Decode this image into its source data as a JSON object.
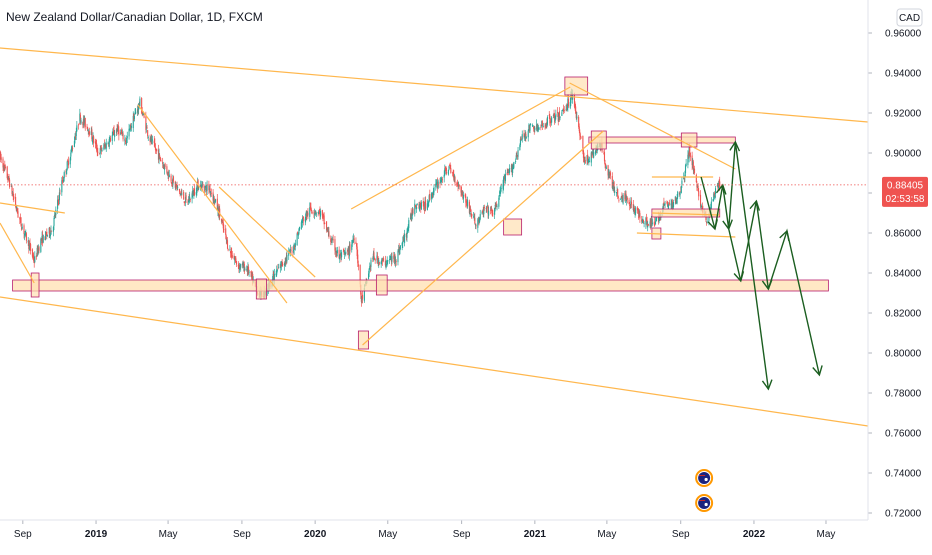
{
  "chart_data": {
    "type": "candlestick",
    "title": "New Zealand Dollar/Canadian Dollar, 1D, FXCM",
    "currency_button": "CAD",
    "y_axis": {
      "ylim": [
        0.7165,
        0.9765
      ],
      "tick_labels": [
        "0.72000",
        "0.74000",
        "0.76000",
        "0.78000",
        "0.80000",
        "0.82000",
        "0.84000",
        "0.86000",
        "0.88000",
        "0.90000",
        "0.92000",
        "0.94000",
        "0.96000"
      ],
      "tick_values": [
        0.72,
        0.74,
        0.76,
        0.78,
        0.8,
        0.82,
        0.84,
        0.86,
        0.88,
        0.9,
        0.92,
        0.94,
        0.96
      ]
    },
    "x_axis": {
      "range": [
        "2018-07-25",
        "2022-07-10"
      ],
      "ticks": [
        {
          "label": "Sep",
          "date": "2018-09-01",
          "bold": false
        },
        {
          "label": "2019",
          "date": "2019-01-01",
          "bold": true
        },
        {
          "label": "May",
          "date": "2019-05-01",
          "bold": false
        },
        {
          "label": "Sep",
          "date": "2019-09-01",
          "bold": false
        },
        {
          "label": "2020",
          "date": "2020-01-01",
          "bold": true
        },
        {
          "label": "May",
          "date": "2020-05-01",
          "bold": false
        },
        {
          "label": "Sep",
          "date": "2020-09-01",
          "bold": false
        },
        {
          "label": "2021",
          "date": "2021-01-01",
          "bold": true
        },
        {
          "label": "May",
          "date": "2021-05-01",
          "bold": false
        },
        {
          "label": "Sep",
          "date": "2021-09-01",
          "bold": false
        },
        {
          "label": "2022",
          "date": "2022-01-01",
          "bold": true
        },
        {
          "label": "May",
          "date": "2022-05-01",
          "bold": false
        }
      ]
    },
    "last_price": {
      "value": 0.88405,
      "label": "0.88405",
      "countdown": "02:53:58"
    },
    "colors": {
      "up": "#26a69a",
      "down": "#ef5350",
      "drawing": "#ffb74d",
      "zone_fill": "#ffe0b2",
      "zone_border": "#b71c6b",
      "projection": "#1b5e20",
      "badge": "#ef5350"
    },
    "price_path": [
      [
        "2018-07-25",
        0.898
      ],
      [
        "2018-08-10",
        0.885
      ],
      [
        "2018-08-25",
        0.868
      ],
      [
        "2018-09-10",
        0.855
      ],
      [
        "2018-09-20",
        0.846
      ],
      [
        "2018-10-01",
        0.856
      ],
      [
        "2018-10-20",
        0.862
      ],
      [
        "2018-11-05",
        0.885
      ],
      [
        "2018-11-20",
        0.9
      ],
      [
        "2018-12-05",
        0.918
      ],
      [
        "2018-12-20",
        0.912
      ],
      [
        "2019-01-05",
        0.9
      ],
      [
        "2019-01-20",
        0.905
      ],
      [
        "2019-02-05",
        0.912
      ],
      [
        "2019-02-20",
        0.906
      ],
      [
        "2019-03-05",
        0.918
      ],
      [
        "2019-03-15",
        0.925
      ],
      [
        "2019-03-30",
        0.908
      ],
      [
        "2019-04-20",
        0.896
      ],
      [
        "2019-05-10",
        0.885
      ],
      [
        "2019-06-01",
        0.875
      ],
      [
        "2019-06-20",
        0.884
      ],
      [
        "2019-07-10",
        0.882
      ],
      [
        "2019-07-25",
        0.87
      ],
      [
        "2019-08-10",
        0.852
      ],
      [
        "2019-08-25",
        0.844
      ],
      [
        "2019-09-10",
        0.842
      ],
      [
        "2019-09-25",
        0.832
      ],
      [
        "2019-10-05",
        0.829
      ],
      [
        "2019-10-20",
        0.836
      ],
      [
        "2019-11-05",
        0.844
      ],
      [
        "2019-11-25",
        0.852
      ],
      [
        "2019-12-10",
        0.866
      ],
      [
        "2019-12-25",
        0.872
      ],
      [
        "2020-01-10",
        0.87
      ],
      [
        "2020-01-25",
        0.858
      ],
      [
        "2020-02-10",
        0.848
      ],
      [
        "2020-02-25",
        0.85
      ],
      [
        "2020-03-08",
        0.86
      ],
      [
        "2020-03-18",
        0.826
      ],
      [
        "2020-03-22",
        0.83
      ],
      [
        "2020-04-05",
        0.848
      ],
      [
        "2020-04-25",
        0.845
      ],
      [
        "2020-05-15",
        0.848
      ],
      [
        "2020-06-01",
        0.86
      ],
      [
        "2020-06-15",
        0.875
      ],
      [
        "2020-07-01",
        0.873
      ],
      [
        "2020-07-20",
        0.883
      ],
      [
        "2020-08-10",
        0.893
      ],
      [
        "2020-08-25",
        0.885
      ],
      [
        "2020-09-10",
        0.875
      ],
      [
        "2020-09-25",
        0.864
      ],
      [
        "2020-10-10",
        0.872
      ],
      [
        "2020-10-25",
        0.87
      ],
      [
        "2020-11-10",
        0.886
      ],
      [
        "2020-11-25",
        0.893
      ],
      [
        "2020-12-10",
        0.907
      ],
      [
        "2020-12-25",
        0.913
      ],
      [
        "2021-01-10",
        0.912
      ],
      [
        "2021-01-25",
        0.917
      ],
      [
        "2021-02-10",
        0.918
      ],
      [
        "2021-02-25",
        0.925
      ],
      [
        "2021-03-05",
        0.93
      ],
      [
        "2021-03-15",
        0.912
      ],
      [
        "2021-03-25",
        0.896
      ],
      [
        "2021-04-05",
        0.898
      ],
      [
        "2021-04-20",
        0.905
      ],
      [
        "2021-05-05",
        0.888
      ],
      [
        "2021-05-20",
        0.878
      ],
      [
        "2021-06-05",
        0.877
      ],
      [
        "2021-06-20",
        0.87
      ],
      [
        "2021-07-05",
        0.866
      ],
      [
        "2021-07-20",
        0.864
      ],
      [
        "2021-08-05",
        0.874
      ],
      [
        "2021-08-20",
        0.874
      ],
      [
        "2021-09-05",
        0.886
      ],
      [
        "2021-09-15",
        0.901
      ],
      [
        "2021-09-25",
        0.889
      ],
      [
        "2021-10-05",
        0.873
      ],
      [
        "2021-10-15",
        0.865
      ],
      [
        "2021-10-25",
        0.878
      ],
      [
        "2021-11-05",
        0.884
      ]
    ],
    "drawings": {
      "trend_lines": [
        {
          "from": [
            "2018-07-25",
            0.9525
          ],
          "to": [
            "2022-07-10",
            0.9155
          ]
        },
        {
          "from": [
            "2018-07-25",
            0.828
          ],
          "to": [
            "2022-07-10",
            0.7635
          ]
        },
        {
          "from": [
            "2021-02-28",
            0.935
          ],
          "to": [
            "2021-12-01",
            0.892
          ]
        },
        {
          "from": [
            "2020-03-01",
            0.872
          ],
          "to": [
            "2021-03-01",
            0.933
          ]
        },
        {
          "from": [
            "2020-03-20",
            0.804
          ],
          "to": [
            "2021-04-25",
            0.911
          ]
        },
        {
          "from": [
            "2018-07-25",
            0.875
          ],
          "to": [
            "2018-11-10",
            0.87
          ]
        },
        {
          "from": [
            "2018-07-25",
            0.865
          ],
          "to": [
            "2018-09-20",
            0.835
          ]
        },
        {
          "from": [
            "2019-03-12",
            0.924
          ],
          "to": [
            "2019-11-15",
            0.825
          ]
        },
        {
          "from": [
            "2019-07-25",
            0.883
          ],
          "to": [
            "2020-01-01",
            0.838
          ]
        },
        {
          "from": [
            "2021-06-20",
            0.86
          ],
          "to": [
            "2021-12-01",
            0.858
          ]
        },
        {
          "from": [
            "2021-07-15",
            0.888
          ],
          "to": [
            "2021-10-25",
            0.888
          ]
        },
        {
          "from": [
            "2021-07-15",
            0.87
          ],
          "to": [
            "2021-11-05",
            0.869
          ]
        }
      ],
      "zones": [
        {
          "from": [
            "2018-08-15",
            0.8365
          ],
          "to": [
            "2022-05-05",
            0.831
          ]
        },
        {
          "from": [
            "2021-04-01",
            0.908
          ],
          "to": [
            "2021-12-01",
            0.905
          ]
        },
        {
          "from": [
            "2021-07-15",
            0.872
          ],
          "to": [
            "2021-11-05",
            0.868
          ]
        }
      ],
      "boxes": [
        {
          "from": [
            "2018-09-15",
            0.84
          ],
          "to": [
            "2018-09-28",
            0.828
          ]
        },
        {
          "from": [
            "2019-09-25",
            0.837
          ],
          "to": [
            "2019-10-12",
            0.827
          ]
        },
        {
          "from": [
            "2020-03-13",
            0.811
          ],
          "to": [
            "2020-03-30",
            0.802
          ]
        },
        {
          "from": [
            "2020-04-12",
            0.839
          ],
          "to": [
            "2020-04-30",
            0.829
          ]
        },
        {
          "from": [
            "2020-11-10",
            0.867
          ],
          "to": [
            "2020-12-10",
            0.859
          ]
        },
        {
          "from": [
            "2021-02-20",
            0.938
          ],
          "to": [
            "2021-03-30",
            0.929
          ]
        },
        {
          "from": [
            "2021-04-05",
            0.911
          ],
          "to": [
            "2021-04-30",
            0.902
          ]
        },
        {
          "from": [
            "2021-07-15",
            0.8625
          ],
          "to": [
            "2021-07-30",
            0.857
          ]
        },
        {
          "from": [
            "2021-09-02",
            0.91
          ],
          "to": [
            "2021-09-28",
            0.903
          ]
        }
      ],
      "projections": [
        [
          [
            "2021-10-05",
            0.888
          ],
          [
            "2021-10-28",
            0.862
          ],
          [
            "2021-11-10",
            0.884
          ],
          [
            "2021-11-20",
            0.862
          ],
          [
            "2021-12-01",
            0.9055
          ],
          [
            "2022-01-25",
            0.782
          ]
        ],
        [
          [
            "2021-11-20",
            0.862
          ],
          [
            "2021-12-10",
            0.836
          ],
          [
            "2022-01-05",
            0.876
          ],
          [
            "2022-01-25",
            0.832
          ],
          [
            "2022-02-25",
            0.861
          ],
          [
            "2022-04-20",
            0.789
          ]
        ]
      ]
    },
    "events": [
      {
        "date": "2021-10-10",
        "value": 0.7375,
        "icon": "nz-flag-icon"
      },
      {
        "date": "2021-10-10",
        "value": 0.725,
        "icon": "nz-flag-icon"
      }
    ]
  }
}
